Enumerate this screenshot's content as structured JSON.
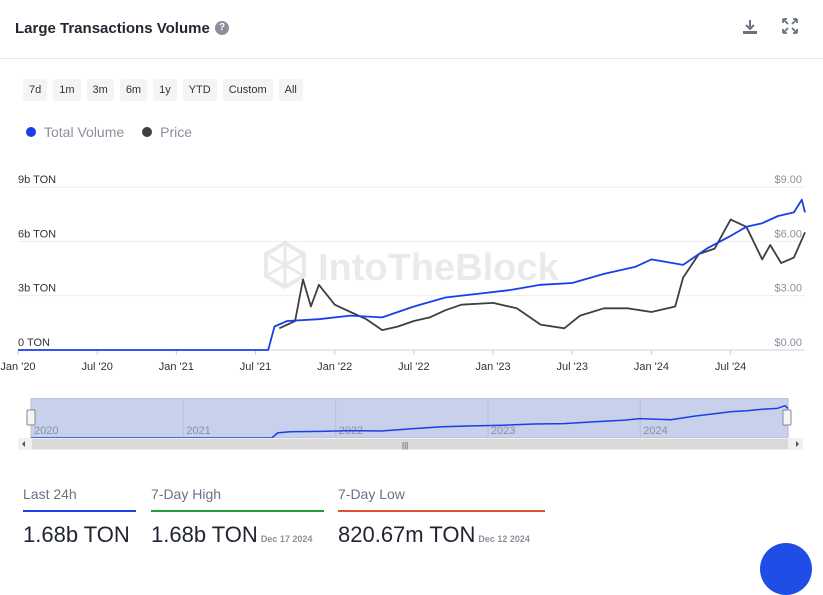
{
  "header": {
    "title": "Large Transactions Volume",
    "help_icon": "?"
  },
  "toolbar": {
    "download_icon": "download-icon",
    "expand_icon": "expand-icon"
  },
  "ranges": [
    "7d",
    "1m",
    "3m",
    "6m",
    "1y",
    "YTD",
    "Custom",
    "All"
  ],
  "legend": [
    {
      "label": "Total Volume",
      "color": "#1a3fe6"
    },
    {
      "label": "Price",
      "color": "#3d3f45"
    }
  ],
  "watermark": "IntoTheBlock",
  "chart_data": {
    "type": "line",
    "x_ticks": [
      "Jan '20",
      "Jul '20",
      "Jan '21",
      "Jul '21",
      "Jan '22",
      "Jul '22",
      "Jan '23",
      "Jul '23",
      "Jan '24",
      "Jul '24"
    ],
    "x_range": [
      2020.0,
      2024.97
    ],
    "y_left": {
      "ticks": [
        "0 TON",
        "3b TON",
        "6b TON",
        "9b TON"
      ],
      "range": [
        0,
        9
      ]
    },
    "y_right": {
      "ticks": [
        "$0.00",
        "$3.00",
        "$6.00",
        "$9.00"
      ],
      "range": [
        0,
        9
      ]
    },
    "series": [
      {
        "name": "Total Volume",
        "color": "#1a3fe6",
        "points": [
          [
            2020.0,
            0
          ],
          [
            2021.2,
            0
          ],
          [
            2021.58,
            0
          ],
          [
            2021.62,
            1.3
          ],
          [
            2021.7,
            1.6
          ],
          [
            2021.9,
            1.7
          ],
          [
            2022.1,
            1.9
          ],
          [
            2022.3,
            1.8
          ],
          [
            2022.5,
            2.4
          ],
          [
            2022.7,
            2.9
          ],
          [
            2022.9,
            3.1
          ],
          [
            2023.1,
            3.3
          ],
          [
            2023.3,
            3.6
          ],
          [
            2023.5,
            3.7
          ],
          [
            2023.7,
            4.2
          ],
          [
            2023.9,
            4.6
          ],
          [
            2024.0,
            5.0
          ],
          [
            2024.2,
            4.7
          ],
          [
            2024.35,
            5.6
          ],
          [
            2024.5,
            6.3
          ],
          [
            2024.6,
            6.8
          ],
          [
            2024.7,
            7.0
          ],
          [
            2024.8,
            7.4
          ],
          [
            2024.9,
            7.6
          ],
          [
            2024.95,
            8.3
          ],
          [
            2024.97,
            7.6
          ]
        ]
      },
      {
        "name": "Price",
        "color": "#3d3f45",
        "points": [
          [
            2021.65,
            1.2
          ],
          [
            2021.75,
            1.6
          ],
          [
            2021.8,
            3.9
          ],
          [
            2021.85,
            2.4
          ],
          [
            2021.9,
            3.6
          ],
          [
            2022.0,
            2.5
          ],
          [
            2022.1,
            2.1
          ],
          [
            2022.2,
            1.7
          ],
          [
            2022.3,
            1.1
          ],
          [
            2022.4,
            1.3
          ],
          [
            2022.5,
            1.6
          ],
          [
            2022.6,
            1.8
          ],
          [
            2022.7,
            2.2
          ],
          [
            2022.8,
            2.5
          ],
          [
            2023.0,
            2.6
          ],
          [
            2023.15,
            2.3
          ],
          [
            2023.3,
            1.4
          ],
          [
            2023.45,
            1.2
          ],
          [
            2023.55,
            1.9
          ],
          [
            2023.7,
            2.3
          ],
          [
            2023.85,
            2.3
          ],
          [
            2024.0,
            2.1
          ],
          [
            2024.15,
            2.4
          ],
          [
            2024.2,
            4.0
          ],
          [
            2024.3,
            5.3
          ],
          [
            2024.4,
            5.6
          ],
          [
            2024.5,
            7.2
          ],
          [
            2024.6,
            6.8
          ],
          [
            2024.7,
            5.0
          ],
          [
            2024.75,
            5.8
          ],
          [
            2024.82,
            4.8
          ],
          [
            2024.9,
            5.1
          ],
          [
            2024.97,
            6.5
          ]
        ]
      }
    ],
    "grid": true
  },
  "navigator": {
    "labels": [
      "2020",
      "2021",
      "2022",
      "2023",
      "2024"
    ],
    "handle_left": "handle-icon",
    "handle_right": "handle-icon",
    "scroll_grip": "|||"
  },
  "stats": [
    {
      "label": "Last 24h",
      "value": "1.68b TON",
      "date": "",
      "color": "#1a3fe6"
    },
    {
      "label": "7-Day High",
      "value": "1.68b TON",
      "date": "Dec 17 2024",
      "color": "#1f9e3a"
    },
    {
      "label": "7-Day Low",
      "value": "820.67m TON",
      "date": "Dec 12 2024",
      "color": "#d9532b"
    }
  ]
}
